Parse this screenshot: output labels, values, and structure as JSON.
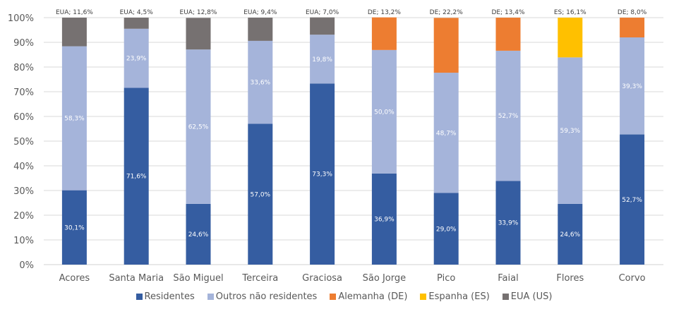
{
  "chart_data": {
    "type": "bar",
    "stacked": true,
    "percent_stacked": true,
    "title": "",
    "xlabel": "",
    "ylabel": "",
    "ylim": [
      0,
      100
    ],
    "yticks": [
      "0%",
      "10%",
      "20%",
      "30%",
      "40%",
      "50%",
      "60%",
      "70%",
      "80%",
      "90%",
      "100%"
    ],
    "grid": true,
    "legend_position": "bottom",
    "categories": [
      "Acores",
      "Santa Maria",
      "São Miguel",
      "Terceira",
      "Graciosa",
      "São Jorge",
      "Pico",
      "Faial",
      "Flores",
      "Corvo"
    ],
    "series": [
      {
        "name": "Residentes",
        "key": "res",
        "color": "#355DA1",
        "values": [
          30.1,
          71.6,
          24.6,
          57.0,
          73.3,
          36.9,
          29.0,
          33.9,
          24.6,
          52.7
        ],
        "labels": [
          "30,1%",
          "71,6%",
          "24,6%",
          "57,0%",
          "73,3%",
          "36,9%",
          "29,0%",
          "33,9%",
          "24,6%",
          "52,7%"
        ]
      },
      {
        "name": "Outros não residentes",
        "key": "out",
        "color": "#A5B4DA",
        "values": [
          58.3,
          23.9,
          62.5,
          33.6,
          19.8,
          50.0,
          48.7,
          52.7,
          59.3,
          39.3
        ],
        "labels": [
          "58,3%",
          "23,9%",
          "62,5%",
          "33,6%",
          "19,8%",
          "50,0%",
          "48,7%",
          "52,7%",
          "59,3%",
          "39,3%"
        ]
      },
      {
        "name": "Alemanha (DE)",
        "key": "de",
        "color": "#ED7D31",
        "values": [
          0,
          0,
          0,
          0,
          0,
          13.2,
          22.2,
          13.4,
          0,
          8.0
        ],
        "labels": [
          "",
          "",
          "",
          "",
          "",
          "DE; 13,2%",
          "DE; 22,2%",
          "DE; 13,4%",
          "",
          "DE; 8,0%"
        ]
      },
      {
        "name": "Espanha (ES)",
        "key": "es",
        "color": "#FFC000",
        "values": [
          0,
          0,
          0,
          0,
          0,
          0,
          0,
          0,
          16.1,
          0
        ],
        "labels": [
          "",
          "",
          "",
          "",
          "",
          "",
          "",
          "",
          "ES; 16,1%",
          ""
        ]
      },
      {
        "name": "EUA (US)",
        "key": "us",
        "color": "#767171",
        "values": [
          11.6,
          4.5,
          12.8,
          9.4,
          7.0,
          0,
          0,
          0,
          0,
          0
        ],
        "labels": [
          "EUA; 11,6%",
          "EUA; 4,5%",
          "EUA; 12,8%",
          "EUA; 9,4%",
          "EUA; 7,0%",
          "",
          "",
          "",
          "",
          ""
        ]
      }
    ]
  },
  "legend": {
    "items": [
      {
        "label": "Residentes",
        "color": "#355DA1"
      },
      {
        "label": "Outros não residentes",
        "color": "#A5B4DA"
      },
      {
        "label": "Alemanha (DE)",
        "color": "#ED7D31"
      },
      {
        "label": "Espanha (ES)",
        "color": "#FFC000"
      },
      {
        "label": "EUA (US)",
        "color": "#767171"
      }
    ]
  }
}
